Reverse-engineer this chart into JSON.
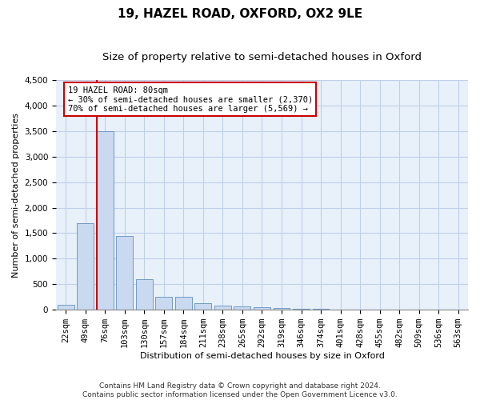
{
  "title": "19, HAZEL ROAD, OXFORD, OX2 9LE",
  "subtitle": "Size of property relative to semi-detached houses in Oxford",
  "xlabel": "Distribution of semi-detached houses by size in Oxford",
  "ylabel": "Number of semi-detached properties",
  "categories": [
    "22sqm",
    "49sqm",
    "76sqm",
    "103sqm",
    "130sqm",
    "157sqm",
    "184sqm",
    "211sqm",
    "238sqm",
    "265sqm",
    "292sqm",
    "319sqm",
    "346sqm",
    "374sqm",
    "401sqm",
    "428sqm",
    "455sqm",
    "482sqm",
    "509sqm",
    "536sqm",
    "563sqm"
  ],
  "values": [
    100,
    1700,
    3500,
    1450,
    600,
    260,
    260,
    130,
    80,
    70,
    50,
    30,
    20,
    15,
    10,
    8,
    5,
    4,
    3,
    2,
    2
  ],
  "bar_color": "#c9d9f0",
  "bar_edge_color": "#6090c0",
  "highlight_line_index": 2,
  "highlight_line_color": "#cc0000",
  "annotation_text": "19 HAZEL ROAD: 80sqm\n← 30% of semi-detached houses are smaller (2,370)\n70% of semi-detached houses are larger (5,569) →",
  "annotation_box_color": "#ffffff",
  "annotation_box_edge_color": "#cc0000",
  "ylim": [
    0,
    4500
  ],
  "yticks": [
    0,
    500,
    1000,
    1500,
    2000,
    2500,
    3000,
    3500,
    4000,
    4500
  ],
  "footer_text": "Contains HM Land Registry data © Crown copyright and database right 2024.\nContains public sector information licensed under the Open Government Licence v3.0.",
  "background_color": "#ffffff",
  "grid_color": "#c0d0e8",
  "plot_bg_color": "#e8f0fa",
  "title_fontsize": 11,
  "subtitle_fontsize": 9.5,
  "axis_label_fontsize": 8,
  "tick_fontsize": 7.5,
  "footer_fontsize": 6.5
}
